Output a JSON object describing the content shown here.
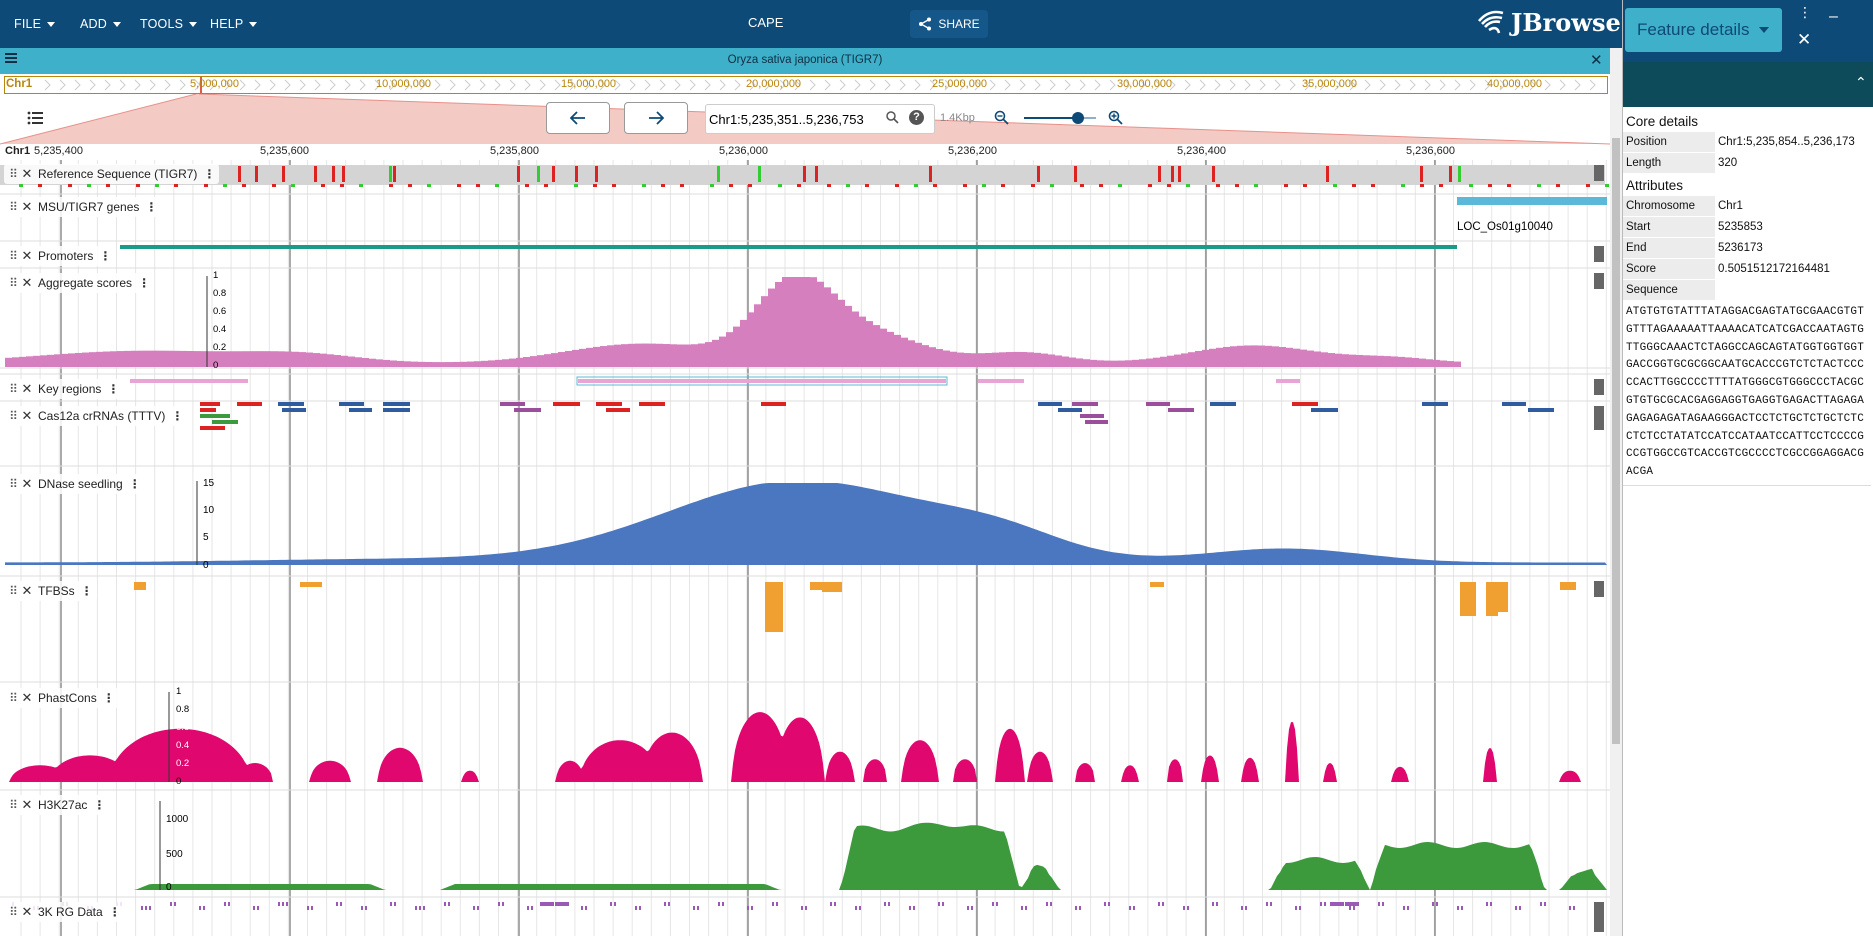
{
  "menubar": {
    "items": [
      {
        "label": "FILE"
      },
      {
        "label": "ADD"
      },
      {
        "label": "TOOLS"
      },
      {
        "label": "HELP"
      }
    ],
    "session_name": "CAPE",
    "share_label": "SHARE",
    "logo_text": "JBrowse"
  },
  "drawer": {
    "widget_name": "Feature details",
    "core_title": "Core details",
    "core": [
      {
        "key": "Position",
        "value": "Chr1:5,235,854..5,236,173"
      },
      {
        "key": "Length",
        "value": "320"
      }
    ],
    "attr_title": "Attributes",
    "attributes": [
      {
        "key": "Chromosome",
        "value": "Chr1"
      },
      {
        "key": "Start",
        "value": "5235853"
      },
      {
        "key": "End",
        "value": "5236173"
      },
      {
        "key": "Score",
        "value": "0.5051512172164481"
      },
      {
        "key": "Sequence",
        "value": ""
      }
    ],
    "sequence": "ATGTGTGTATTTATAGGACGAGTATGCGAACGTGTGTTTAGAAAAATTAAAACATCATCGACCAATAGTGTTGGGCAAACTCTAGGCCAGCAGTATGGTGGTGGTGACCGGTGCGCGGCAATGCACCCGTCTCTACTCCCCCACTTGGCCCCTTTTATGGGCGTGGGCCCTACGCGTGTGCGCACGAGGAGGTGAGGTGAGACTTAGAGAGAGAGAGATAGAAGGGACTCCTCTGCTCTGCTCTCCTCTCCTATATCCATCCATAATCCATTCCTCCCCGCCGTGGCCGTCACCGTCGCCCCTCGCCGGAGGACGACGA"
  },
  "view": {
    "assembly_title": "Oryza sativa japonica (TIGR7)",
    "refname": "Chr1",
    "overview_ticks": [
      "5,000,000",
      "10,000,000",
      "15,000,000",
      "20,000,000",
      "25,000,000",
      "30,000,000",
      "35,000,000",
      "40,000,000"
    ],
    "locstring": "Chr1:5,235,351..5,236,753",
    "bp_per_px": "1.4Kbp",
    "scale_ticks": [
      "5,235,400",
      "5,235,600",
      "5,235,800",
      "5,236,000",
      "5,236,200",
      "5,236,400",
      "5,236,600"
    ],
    "scale_refname": "Chr1",
    "zoom_level": 0.75
  },
  "tracks": [
    {
      "name": "Reference Sequence (TIGR7)"
    },
    {
      "name": "MSU/TIGR7 genes",
      "feature_label": "LOC_Os01g10040"
    },
    {
      "name": "Promoters"
    },
    {
      "name": "Aggregate scores",
      "axis": [
        "1",
        "0.8",
        "0.6",
        "0.4",
        "0.2",
        "0"
      ]
    },
    {
      "name": "Key regions"
    },
    {
      "name": "Cas12a crRNAs (TTTV)"
    },
    {
      "name": "DNase seedling",
      "axis": [
        "15",
        "10",
        "5",
        "0"
      ]
    },
    {
      "name": "TFBSs"
    },
    {
      "name": "PhastCons",
      "axis": [
        "1",
        "0.8",
        "0.6",
        "0.4",
        "0.2",
        "0"
      ]
    },
    {
      "name": "H3K27ac",
      "axis": [
        "1000",
        "500",
        "0"
      ]
    },
    {
      "name": "3K RG Data"
    }
  ],
  "colors": {
    "appbar": "#0d4a78",
    "view_header": "#3fb0c9",
    "aggregate": "#d57fbe",
    "dnase": "#4a77c0",
    "phastcons": "#e0086e",
    "h3k27ac": "#3c9a3c",
    "tfbs": "#f0a030",
    "promoter": "#1a9b8a",
    "gene": "#5bb8d6"
  }
}
